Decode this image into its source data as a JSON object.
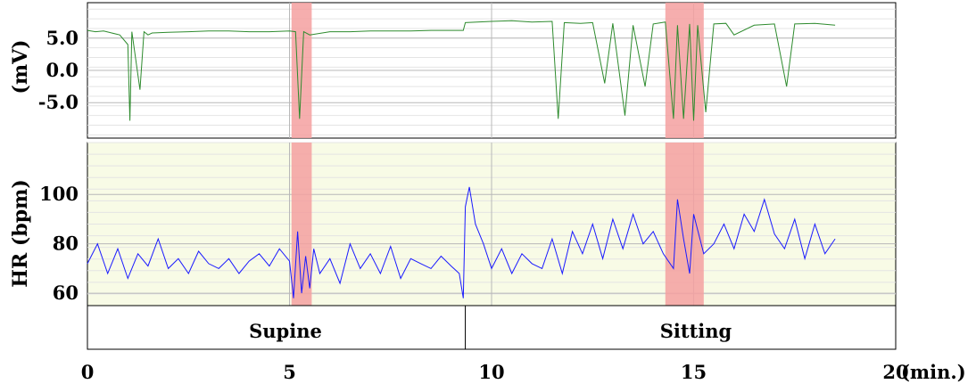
{
  "chart_data": [
    {
      "type": "line",
      "ylabel": "(mV)",
      "yticks": [
        "5.0",
        "0.0",
        "-5.0"
      ],
      "ytick_values": [
        5.0,
        0.0,
        -5.0
      ],
      "ylim": [
        -10.5,
        10.5
      ],
      "xlim": [
        0,
        20
      ],
      "grid": true,
      "colors": {
        "line": "#2e8b2e",
        "background": "#ffffff",
        "highlight": "#f4a0a0"
      },
      "series": [
        {
          "values_note_free": true,
          "x": [
            0.0,
            0.2,
            0.4,
            0.6,
            0.8,
            1.0,
            1.05,
            1.1,
            1.3,
            1.4,
            1.5,
            1.6,
            2.0,
            2.5,
            3.0,
            3.5,
            4.0,
            4.5,
            5.0,
            5.15,
            5.25,
            5.35,
            5.5,
            6.0,
            6.5,
            7.0,
            7.5,
            8.0,
            8.5,
            9.0,
            9.3,
            9.35,
            10.0,
            10.5,
            11.0,
            11.5,
            11.65,
            11.8,
            12.2,
            12.5,
            12.8,
            13.0,
            13.3,
            13.5,
            13.8,
            14.0,
            14.3,
            14.5,
            14.6,
            14.75,
            14.9,
            15.0,
            15.1,
            15.3,
            15.5,
            15.8,
            16.0,
            16.5,
            17.0,
            17.3,
            17.5,
            18.0,
            18.5
          ],
          "y": [
            6.2,
            6.0,
            6.1,
            5.8,
            5.5,
            4.0,
            -7.8,
            6.0,
            -3.0,
            6.0,
            5.5,
            5.8,
            5.9,
            6.0,
            6.1,
            6.1,
            6.0,
            6.0,
            6.1,
            6.0,
            -7.5,
            6.0,
            5.5,
            6.0,
            6.0,
            6.1,
            6.1,
            6.1,
            6.2,
            6.2,
            6.2,
            7.4,
            7.6,
            7.7,
            7.5,
            7.6,
            -7.5,
            7.4,
            7.3,
            7.4,
            -2.0,
            7.3,
            -7.0,
            7.0,
            -2.5,
            7.2,
            7.5,
            -7.5,
            7.0,
            -7.5,
            7.2,
            -7.8,
            7.0,
            -6.5,
            7.2,
            7.3,
            5.5,
            7.0,
            7.2,
            -2.5,
            7.2,
            7.3,
            7.0
          ]
        }
      ],
      "highlights": [
        [
          5.05,
          5.55
        ],
        [
          14.3,
          15.25
        ]
      ]
    },
    {
      "type": "line",
      "ylabel": "HR (bpm)",
      "yticks": [
        "100",
        "80",
        "60"
      ],
      "ytick_values": [
        100,
        80,
        60
      ],
      "ylim": [
        55,
        121
      ],
      "xlim": [
        0,
        20
      ],
      "grid": true,
      "colors": {
        "line": "#1a1aff",
        "background": "#f8fbe6",
        "highlight": "#f4a0a0"
      },
      "series": [
        {
          "x": [
            0.0,
            0.25,
            0.5,
            0.75,
            1.0,
            1.25,
            1.5,
            1.75,
            2.0,
            2.25,
            2.5,
            2.75,
            3.0,
            3.25,
            3.5,
            3.75,
            4.0,
            4.25,
            4.5,
            4.75,
            5.0,
            5.1,
            5.2,
            5.3,
            5.4,
            5.5,
            5.6,
            5.75,
            6.0,
            6.25,
            6.5,
            6.75,
            7.0,
            7.25,
            7.5,
            7.75,
            8.0,
            8.25,
            8.5,
            8.75,
            9.0,
            9.2,
            9.3,
            9.35,
            9.45,
            9.6,
            9.8,
            10.0,
            10.25,
            10.5,
            10.75,
            11.0,
            11.25,
            11.5,
            11.75,
            12.0,
            12.25,
            12.5,
            12.75,
            13.0,
            13.25,
            13.5,
            13.75,
            14.0,
            14.25,
            14.5,
            14.6,
            14.75,
            14.9,
            15.0,
            15.25,
            15.5,
            15.75,
            16.0,
            16.25,
            16.5,
            16.75,
            17.0,
            17.25,
            17.5,
            17.75,
            18.0,
            18.25,
            18.5
          ],
          "y": [
            72,
            80,
            68,
            78,
            66,
            76,
            71,
            82,
            70,
            74,
            68,
            77,
            72,
            70,
            74,
            68,
            73,
            76,
            71,
            78,
            73,
            58,
            85,
            60,
            75,
            62,
            78,
            68,
            74,
            64,
            80,
            70,
            76,
            68,
            79,
            66,
            74,
            72,
            70,
            75,
            71,
            68,
            58,
            95,
            103,
            88,
            80,
            70,
            78,
            68,
            76,
            72,
            70,
            82,
            68,
            85,
            76,
            88,
            74,
            90,
            78,
            92,
            80,
            85,
            76,
            70,
            98,
            82,
            68,
            92,
            76,
            80,
            88,
            78,
            92,
            85,
            98,
            84,
            78,
            90,
            74,
            88,
            76,
            82
          ]
        }
      ],
      "highlights": [
        [
          5.05,
          5.55
        ],
        [
          14.3,
          15.25
        ]
      ]
    }
  ],
  "xaxis": {
    "ticks": [
      "0",
      "5",
      "10",
      "15",
      "20"
    ],
    "tick_values": [
      0,
      5,
      10,
      15,
      20
    ],
    "unit": "(min.)"
  },
  "positions": {
    "supine": "Supine",
    "sitting": "Sitting",
    "boundary": 9.35
  }
}
